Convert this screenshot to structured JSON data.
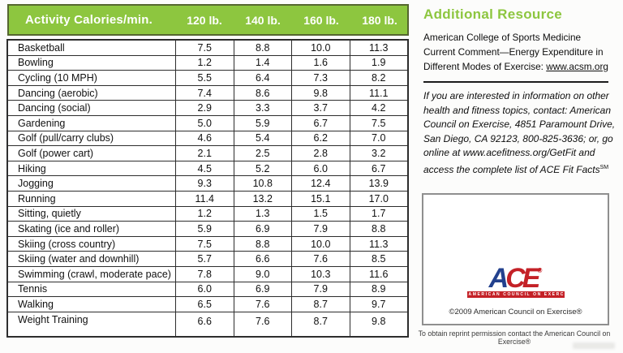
{
  "colors": {
    "accent_green": "#8dc63f",
    "logo_blue": "#23418e",
    "logo_red": "#c42127",
    "table_border": "#2d2d2d"
  },
  "table": {
    "header": {
      "activity": "Activity Calories/min.",
      "weights": [
        "120 lb.",
        "140 lb.",
        "160 lb.",
        "180 lb."
      ]
    },
    "rows": [
      {
        "activity": "Basketball",
        "values": [
          "7.5",
          "8.8",
          "10.0",
          "11.3"
        ]
      },
      {
        "activity": "Bowling",
        "values": [
          "1.2",
          "1.4",
          "1.6",
          "1.9"
        ]
      },
      {
        "activity": "Cycling (10 MPH)",
        "values": [
          "5.5",
          "6.4",
          "7.3",
          "8.2"
        ]
      },
      {
        "activity": "Dancing (aerobic)",
        "values": [
          "7.4",
          "8.6",
          "9.8",
          "11.1"
        ]
      },
      {
        "activity": "Dancing (social)",
        "values": [
          "2.9",
          "3.3",
          "3.7",
          "4.2"
        ]
      },
      {
        "activity": "Gardening",
        "values": [
          "5.0",
          "5.9",
          "6.7",
          "7.5"
        ]
      },
      {
        "activity": "Golf (pull/carry clubs)",
        "values": [
          "4.6",
          "5.4",
          "6.2",
          "7.0"
        ]
      },
      {
        "activity": "Golf (power cart)",
        "values": [
          "2.1",
          "2.5",
          "2.8",
          "3.2"
        ]
      },
      {
        "activity": "Hiking",
        "values": [
          "4.5",
          "5.2",
          "6.0",
          "6.7"
        ]
      },
      {
        "activity": "Jogging",
        "values": [
          "9.3",
          "10.8",
          "12.4",
          "13.9"
        ]
      },
      {
        "activity": "Running",
        "values": [
          "11.4",
          "13.2",
          "15.1",
          "17.0"
        ]
      },
      {
        "activity": "Sitting, quietly",
        "values": [
          "1.2",
          "1.3",
          "1.5",
          "1.7"
        ]
      },
      {
        "activity": "Skating (ice and roller)",
        "values": [
          "5.9",
          "6.9",
          "7.9",
          "8.8"
        ]
      },
      {
        "activity": "Skiing (cross country)",
        "values": [
          "7.5",
          "8.8",
          "10.0",
          "11.3"
        ]
      },
      {
        "activity": "Skiing (water and downhill)",
        "values": [
          "5.7",
          "6.6",
          "7.6",
          "8.5"
        ]
      },
      {
        "activity": "Swimming (crawl, moderate pace)",
        "values": [
          "7.8",
          "9.0",
          "10.3",
          "11.6"
        ]
      },
      {
        "activity": "Tennis",
        "values": [
          "6.0",
          "6.9",
          "7.9",
          "8.9"
        ]
      },
      {
        "activity": "Walking",
        "values": [
          "6.5",
          "7.6",
          "8.7",
          "9.7"
        ]
      },
      {
        "activity": "Weight Training",
        "values": [
          "6.6",
          "7.6",
          "8.7",
          "9.8"
        ]
      }
    ]
  },
  "sidebar": {
    "heading": "Additional Resource",
    "resource_text": "American College of Sports Medicine Current Comment—Energy Expenditure in Different Modes of Exercise: ",
    "resource_link": "www.acsm.org",
    "contact_text": "If you are interested in information on other health and fitness topics, contact: American Council on Exercise, 4851 Paramount Drive, San Diego, CA 92123, 800-825-3636; or, go online at www.acefitness.org/GetFit and access the complete list of ACE Fit Facts",
    "contact_mark": "SM",
    "logo": {
      "a": "A",
      "ce": "CE",
      "registered": "®",
      "tagline": "AMERICAN COUNCIL ON EXERCISE"
    },
    "copyright": "©2009 American Council on Exercise®",
    "reprint": "To obtain reprint permission contact the American Council on Exercise®"
  }
}
